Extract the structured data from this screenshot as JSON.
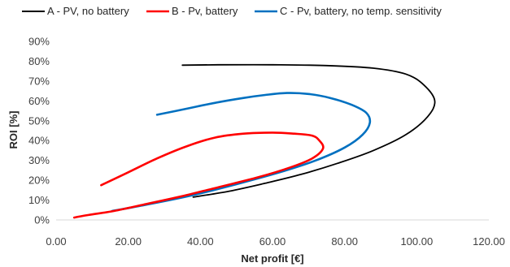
{
  "chart_data": {
    "type": "line",
    "xlabel": "Net profit [€]",
    "ylabel": "ROI [%]",
    "xlim": [
      0,
      120
    ],
    "ylim": [
      0,
      90
    ],
    "x_ticks": [
      "0.00",
      "20.00",
      "40.00",
      "60.00",
      "80.00",
      "100.00",
      "120.00"
    ],
    "y_ticks": [
      "0%",
      "10%",
      "20%",
      "30%",
      "40%",
      "50%",
      "60%",
      "70%",
      "80%",
      "90%"
    ],
    "grid": false,
    "legend_position": "top",
    "series": [
      {
        "name": "A - PV, no battery",
        "color": "#000000",
        "points": [
          [
            35,
            78
          ],
          [
            45,
            78.2
          ],
          [
            60,
            78.2
          ],
          [
            75,
            77.8
          ],
          [
            88,
            76.5
          ],
          [
            97,
            73.5
          ],
          [
            102,
            68
          ],
          [
            105,
            60
          ],
          [
            103,
            52
          ],
          [
            97,
            43
          ],
          [
            88,
            35
          ],
          [
            78,
            28.5
          ],
          [
            68,
            23
          ],
          [
            58,
            18.5
          ],
          [
            48,
            14.5
          ],
          [
            38,
            11.5
          ]
        ]
      },
      {
        "name": "B - Pv, battery",
        "color": "#ff0000",
        "points": [
          [
            12.5,
            17.5
          ],
          [
            20,
            24
          ],
          [
            28,
            31
          ],
          [
            36,
            37
          ],
          [
            44,
            41.5
          ],
          [
            52,
            43.5
          ],
          [
            60,
            44
          ],
          [
            66,
            43.5
          ],
          [
            71,
            42.5
          ],
          [
            73,
            40
          ],
          [
            74,
            36
          ],
          [
            71,
            31
          ],
          [
            65,
            26.5
          ],
          [
            56,
            21.5
          ],
          [
            45,
            16.5
          ],
          [
            35,
            12
          ],
          [
            25,
            8
          ],
          [
            16,
            4.5
          ],
          [
            9,
            2.5
          ],
          [
            5,
            1.2
          ]
        ]
      },
      {
        "name": "C - Pv, battery, no temp. sensitivity",
        "color": "#0070c0",
        "points": [
          [
            28,
            53
          ],
          [
            36,
            56
          ],
          [
            44,
            59
          ],
          [
            52,
            61.5
          ],
          [
            58,
            63
          ],
          [
            64,
            64
          ],
          [
            70,
            63.5
          ],
          [
            76,
            61.5
          ],
          [
            82,
            58
          ],
          [
            86,
            54
          ],
          [
            87,
            49
          ],
          [
            85,
            43
          ],
          [
            80,
            36.5
          ],
          [
            72,
            30
          ],
          [
            62,
            24
          ],
          [
            50,
            18
          ],
          [
            38,
            12.5
          ],
          [
            26,
            8
          ],
          [
            15.5,
            4.5
          ]
        ]
      }
    ]
  }
}
